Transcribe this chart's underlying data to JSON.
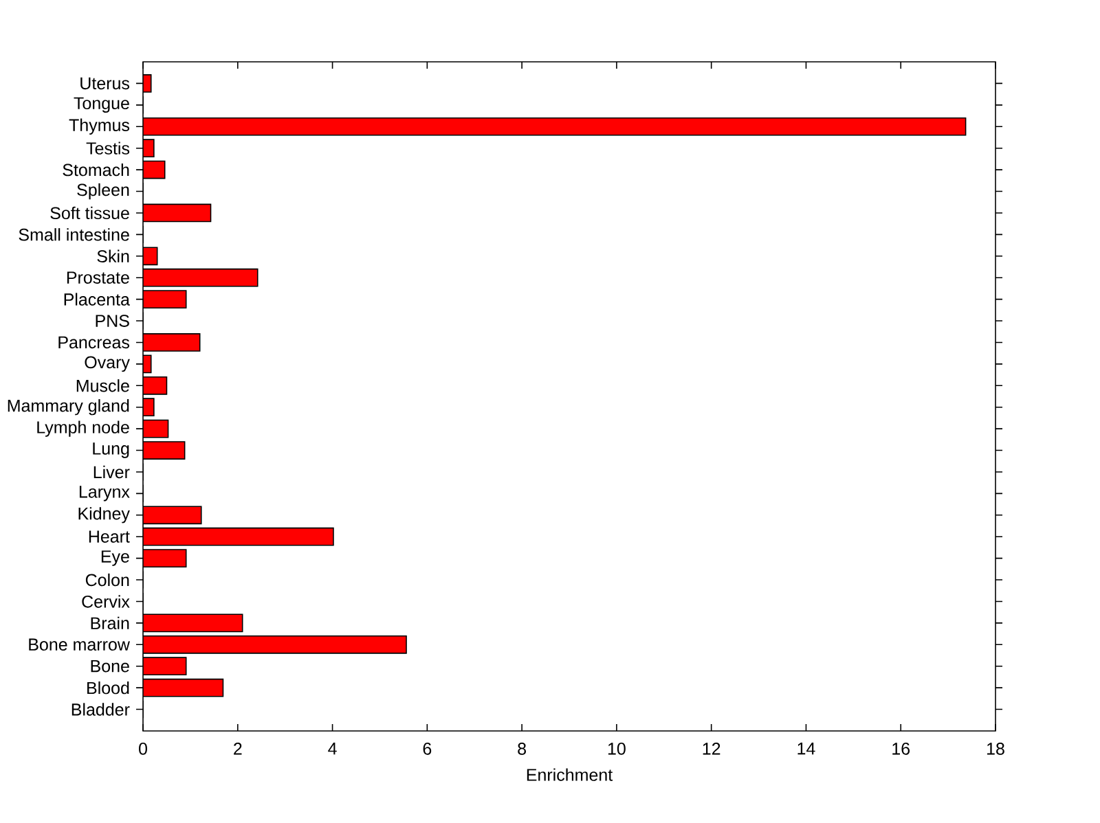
{
  "chart_data": {
    "type": "bar",
    "orientation": "horizontal",
    "xlabel": "Enrichment",
    "categories": [
      "Uterus",
      "Tongue",
      "Thymus",
      "Testis",
      "Stomach",
      "Spleen",
      "Soft tissue",
      "Small intestine",
      "Skin",
      "Prostate",
      "Placenta",
      "PNS",
      "Pancreas",
      "Ovary",
      "Muscle",
      "Mammary gland",
      "Lymph node",
      "Lung",
      "Liver",
      "Larynx",
      "Kidney",
      "Heart",
      "Eye",
      "Colon",
      "Cervix",
      "Brain",
      "Bone marrow",
      "Bone",
      "Blood",
      "Bladder"
    ],
    "values": [
      0.17,
      0,
      17.37,
      0.23,
      0.46,
      0,
      1.43,
      0,
      0.3,
      2.42,
      0.91,
      0,
      1.2,
      0.17,
      0.5,
      0.23,
      0.53,
      0.88,
      0,
      0,
      1.23,
      4.02,
      0.91,
      0,
      0,
      2.1,
      5.56,
      0.91,
      1.69,
      0
    ],
    "color": "#ff0000",
    "xlim": [
      0,
      18
    ],
    "xticks": [
      0,
      2,
      4,
      6,
      8,
      10,
      12,
      14,
      16,
      18
    ]
  }
}
